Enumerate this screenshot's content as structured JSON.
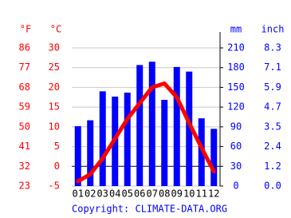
{
  "chart_data": {
    "type": "bar-line",
    "categories": [
      "01",
      "02",
      "03",
      "04",
      "05",
      "06",
      "07",
      "08",
      "09",
      "10",
      "11",
      "12"
    ],
    "series": [
      {
        "name": "mm",
        "type": "bar",
        "axis": "y2",
        "color": "#0000ff",
        "values": [
          91,
          100,
          144,
          136,
          142,
          184,
          189,
          131,
          181,
          174,
          103,
          87
        ]
      },
      {
        "name": "°C",
        "type": "line",
        "axis": "y",
        "color": "#ff0000",
        "values": [
          -3.8,
          -2,
          2,
          7,
          12,
          16,
          20,
          21,
          17.5,
          11,
          4.7,
          -1.3
        ]
      }
    ],
    "ylim": [
      -5,
      30
    ],
    "yticks": [
      -5,
      0,
      5,
      10,
      15,
      20,
      25,
      30
    ],
    "yticks_f": [
      {
        "value": -5,
        "label": "23"
      },
      {
        "value": 0,
        "label": "32"
      },
      {
        "value": 5,
        "label": "41"
      },
      {
        "value": 10,
        "label": "50"
      },
      {
        "value": 15,
        "label": "59"
      },
      {
        "value": 20,
        "label": "68"
      },
      {
        "value": 25,
        "label": "77"
      },
      {
        "value": 30,
        "label": "86"
      }
    ],
    "y2lim": [
      0,
      210
    ],
    "y2ticks": [
      0,
      30,
      60,
      90,
      120,
      150,
      180,
      210
    ],
    "y2ticks_inch": [
      {
        "value": 0,
        "label": "0.0"
      },
      {
        "value": 30,
        "label": "1.2"
      },
      {
        "value": 60,
        "label": "2.4"
      },
      {
        "value": 90,
        "label": "3.5"
      },
      {
        "value": 120,
        "label": "4.7"
      },
      {
        "value": 150,
        "label": "5.9"
      },
      {
        "value": 180,
        "label": "7.1"
      },
      {
        "value": 210,
        "label": "8.3"
      }
    ],
    "axis_titles": {
      "f": "°F",
      "c": "°C",
      "mm": "mm",
      "inch": "inch"
    },
    "grid": true,
    "footer": "Copyright: CLIMATE-DATA.ORG"
  }
}
